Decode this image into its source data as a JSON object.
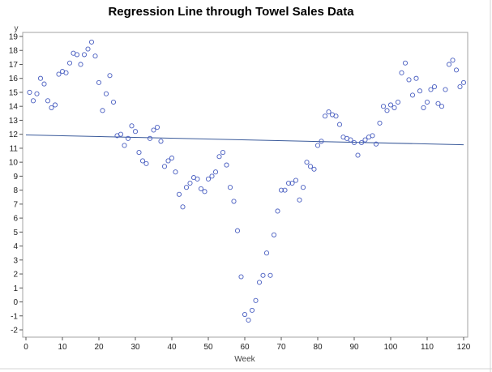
{
  "chart_data": {
    "type": "scatter",
    "title": "Regression Line through Towel Sales Data",
    "xlabel": "Week",
    "ylabel": "y",
    "xlim": [
      0,
      120
    ],
    "ylim": [
      -2,
      19
    ],
    "xticks": [
      0,
      10,
      20,
      30,
      40,
      50,
      60,
      70,
      80,
      90,
      100,
      110,
      120
    ],
    "yticks": [
      -2,
      -1,
      0,
      1,
      2,
      3,
      4,
      5,
      6,
      7,
      8,
      9,
      10,
      11,
      12,
      13,
      14,
      15,
      16,
      17,
      18,
      19
    ],
    "grid": false,
    "marker_color": "#4a5fc1",
    "line_color": "#3a5a9a",
    "points": [
      [
        1,
        15.0
      ],
      [
        2,
        14.4
      ],
      [
        3,
        14.9
      ],
      [
        4,
        16.0
      ],
      [
        5,
        15.6
      ],
      [
        6,
        14.4
      ],
      [
        7,
        13.9
      ],
      [
        8,
        14.1
      ],
      [
        9,
        16.3
      ],
      [
        10,
        16.5
      ],
      [
        11,
        16.4
      ],
      [
        12,
        17.1
      ],
      [
        13,
        17.8
      ],
      [
        14,
        17.7
      ],
      [
        15,
        17.0
      ],
      [
        16,
        17.7
      ],
      [
        17,
        18.1
      ],
      [
        18,
        18.6
      ],
      [
        19,
        17.6
      ],
      [
        20,
        15.7
      ],
      [
        21,
        13.7
      ],
      [
        22,
        14.9
      ],
      [
        23,
        16.2
      ],
      [
        24,
        14.3
      ],
      [
        25,
        11.9
      ],
      [
        26,
        12.0
      ],
      [
        27,
        11.2
      ],
      [
        28,
        11.7
      ],
      [
        29,
        12.6
      ],
      [
        30,
        12.2
      ],
      [
        31,
        10.7
      ],
      [
        32,
        10.1
      ],
      [
        33,
        9.9
      ],
      [
        34,
        11.7
      ],
      [
        35,
        12.3
      ],
      [
        36,
        12.5
      ],
      [
        37,
        11.5
      ],
      [
        38,
        9.7
      ],
      [
        39,
        10.1
      ],
      [
        40,
        10.3
      ],
      [
        41,
        9.3
      ],
      [
        42,
        7.7
      ],
      [
        43,
        6.8
      ],
      [
        44,
        8.2
      ],
      [
        45,
        8.5
      ],
      [
        46,
        8.9
      ],
      [
        47,
        8.8
      ],
      [
        48,
        8.1
      ],
      [
        49,
        7.9
      ],
      [
        50,
        8.8
      ],
      [
        51,
        9.0
      ],
      [
        52,
        9.3
      ],
      [
        53,
        10.4
      ],
      [
        54,
        10.7
      ],
      [
        55,
        9.8
      ],
      [
        56,
        8.2
      ],
      [
        57,
        7.2
      ],
      [
        58,
        5.1
      ],
      [
        59,
        1.8
      ],
      [
        60,
        -0.9
      ],
      [
        61,
        -1.3
      ],
      [
        62,
        -0.6
      ],
      [
        63,
        0.1
      ],
      [
        64,
        1.4
      ],
      [
        65,
        1.9
      ],
      [
        66,
        3.5
      ],
      [
        67,
        1.9
      ],
      [
        68,
        4.8
      ],
      [
        69,
        6.5
      ],
      [
        70,
        8.0
      ],
      [
        71,
        8.0
      ],
      [
        72,
        8.5
      ],
      [
        73,
        8.5
      ],
      [
        74,
        8.7
      ],
      [
        75,
        7.3
      ],
      [
        76,
        8.2
      ],
      [
        77,
        10.0
      ],
      [
        78,
        9.7
      ],
      [
        79,
        9.5
      ],
      [
        80,
        11.2
      ],
      [
        81,
        11.5
      ],
      [
        82,
        13.3
      ],
      [
        83,
        13.6
      ],
      [
        84,
        13.4
      ],
      [
        85,
        13.3
      ],
      [
        86,
        12.7
      ],
      [
        87,
        11.8
      ],
      [
        88,
        11.7
      ],
      [
        89,
        11.6
      ],
      [
        90,
        11.4
      ],
      [
        91,
        10.5
      ],
      [
        92,
        11.4
      ],
      [
        93,
        11.6
      ],
      [
        94,
        11.8
      ],
      [
        95,
        11.9
      ],
      [
        96,
        11.3
      ],
      [
        97,
        12.8
      ],
      [
        98,
        14.0
      ],
      [
        99,
        13.7
      ],
      [
        100,
        14.1
      ],
      [
        101,
        13.9
      ],
      [
        102,
        14.3
      ],
      [
        103,
        16.4
      ],
      [
        104,
        17.1
      ],
      [
        105,
        15.9
      ],
      [
        106,
        14.8
      ],
      [
        107,
        16.0
      ],
      [
        108,
        15.1
      ],
      [
        109,
        13.9
      ],
      [
        110,
        14.3
      ],
      [
        111,
        15.2
      ],
      [
        112,
        15.4
      ],
      [
        113,
        14.2
      ],
      [
        114,
        14.0
      ],
      [
        115,
        15.2
      ],
      [
        116,
        17.0
      ],
      [
        117,
        17.3
      ],
      [
        118,
        16.6
      ],
      [
        119,
        15.4
      ],
      [
        120,
        15.7
      ]
    ],
    "regression_line": {
      "x": [
        0,
        120
      ],
      "y": [
        11.95,
        11.25
      ]
    }
  }
}
